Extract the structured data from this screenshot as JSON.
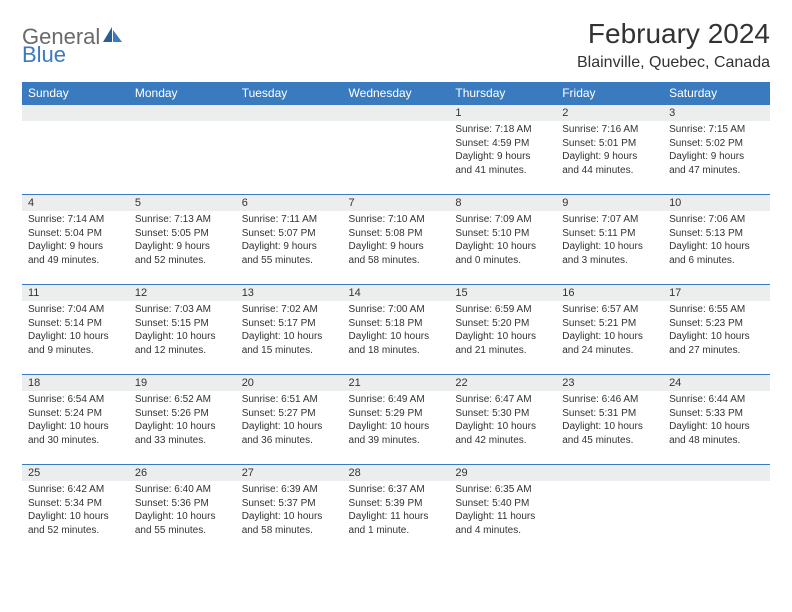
{
  "brand": {
    "part1": "General",
    "part2": "Blue"
  },
  "title": "February 2024",
  "location": "Blainville, Quebec, Canada",
  "colors": {
    "header_bg": "#3a7bbf",
    "header_fg": "#ffffff",
    "daynum_bg": "#eceded",
    "row_border": "#3a7bbf",
    "text": "#333333",
    "logo_gray": "#6a6a6a",
    "page_bg": "#ffffff"
  },
  "daynames": [
    "Sunday",
    "Monday",
    "Tuesday",
    "Wednesday",
    "Thursday",
    "Friday",
    "Saturday"
  ],
  "weeks": [
    [
      null,
      null,
      null,
      null,
      {
        "n": "1",
        "sr": "Sunrise: 7:18 AM",
        "ss": "Sunset: 4:59 PM",
        "dl1": "Daylight: 9 hours",
        "dl2": "and 41 minutes."
      },
      {
        "n": "2",
        "sr": "Sunrise: 7:16 AM",
        "ss": "Sunset: 5:01 PM",
        "dl1": "Daylight: 9 hours",
        "dl2": "and 44 minutes."
      },
      {
        "n": "3",
        "sr": "Sunrise: 7:15 AM",
        "ss": "Sunset: 5:02 PM",
        "dl1": "Daylight: 9 hours",
        "dl2": "and 47 minutes."
      }
    ],
    [
      {
        "n": "4",
        "sr": "Sunrise: 7:14 AM",
        "ss": "Sunset: 5:04 PM",
        "dl1": "Daylight: 9 hours",
        "dl2": "and 49 minutes."
      },
      {
        "n": "5",
        "sr": "Sunrise: 7:13 AM",
        "ss": "Sunset: 5:05 PM",
        "dl1": "Daylight: 9 hours",
        "dl2": "and 52 minutes."
      },
      {
        "n": "6",
        "sr": "Sunrise: 7:11 AM",
        "ss": "Sunset: 5:07 PM",
        "dl1": "Daylight: 9 hours",
        "dl2": "and 55 minutes."
      },
      {
        "n": "7",
        "sr": "Sunrise: 7:10 AM",
        "ss": "Sunset: 5:08 PM",
        "dl1": "Daylight: 9 hours",
        "dl2": "and 58 minutes."
      },
      {
        "n": "8",
        "sr": "Sunrise: 7:09 AM",
        "ss": "Sunset: 5:10 PM",
        "dl1": "Daylight: 10 hours",
        "dl2": "and 0 minutes."
      },
      {
        "n": "9",
        "sr": "Sunrise: 7:07 AM",
        "ss": "Sunset: 5:11 PM",
        "dl1": "Daylight: 10 hours",
        "dl2": "and 3 minutes."
      },
      {
        "n": "10",
        "sr": "Sunrise: 7:06 AM",
        "ss": "Sunset: 5:13 PM",
        "dl1": "Daylight: 10 hours",
        "dl2": "and 6 minutes."
      }
    ],
    [
      {
        "n": "11",
        "sr": "Sunrise: 7:04 AM",
        "ss": "Sunset: 5:14 PM",
        "dl1": "Daylight: 10 hours",
        "dl2": "and 9 minutes."
      },
      {
        "n": "12",
        "sr": "Sunrise: 7:03 AM",
        "ss": "Sunset: 5:15 PM",
        "dl1": "Daylight: 10 hours",
        "dl2": "and 12 minutes."
      },
      {
        "n": "13",
        "sr": "Sunrise: 7:02 AM",
        "ss": "Sunset: 5:17 PM",
        "dl1": "Daylight: 10 hours",
        "dl2": "and 15 minutes."
      },
      {
        "n": "14",
        "sr": "Sunrise: 7:00 AM",
        "ss": "Sunset: 5:18 PM",
        "dl1": "Daylight: 10 hours",
        "dl2": "and 18 minutes."
      },
      {
        "n": "15",
        "sr": "Sunrise: 6:59 AM",
        "ss": "Sunset: 5:20 PM",
        "dl1": "Daylight: 10 hours",
        "dl2": "and 21 minutes."
      },
      {
        "n": "16",
        "sr": "Sunrise: 6:57 AM",
        "ss": "Sunset: 5:21 PM",
        "dl1": "Daylight: 10 hours",
        "dl2": "and 24 minutes."
      },
      {
        "n": "17",
        "sr": "Sunrise: 6:55 AM",
        "ss": "Sunset: 5:23 PM",
        "dl1": "Daylight: 10 hours",
        "dl2": "and 27 minutes."
      }
    ],
    [
      {
        "n": "18",
        "sr": "Sunrise: 6:54 AM",
        "ss": "Sunset: 5:24 PM",
        "dl1": "Daylight: 10 hours",
        "dl2": "and 30 minutes."
      },
      {
        "n": "19",
        "sr": "Sunrise: 6:52 AM",
        "ss": "Sunset: 5:26 PM",
        "dl1": "Daylight: 10 hours",
        "dl2": "and 33 minutes."
      },
      {
        "n": "20",
        "sr": "Sunrise: 6:51 AM",
        "ss": "Sunset: 5:27 PM",
        "dl1": "Daylight: 10 hours",
        "dl2": "and 36 minutes."
      },
      {
        "n": "21",
        "sr": "Sunrise: 6:49 AM",
        "ss": "Sunset: 5:29 PM",
        "dl1": "Daylight: 10 hours",
        "dl2": "and 39 minutes."
      },
      {
        "n": "22",
        "sr": "Sunrise: 6:47 AM",
        "ss": "Sunset: 5:30 PM",
        "dl1": "Daylight: 10 hours",
        "dl2": "and 42 minutes."
      },
      {
        "n": "23",
        "sr": "Sunrise: 6:46 AM",
        "ss": "Sunset: 5:31 PM",
        "dl1": "Daylight: 10 hours",
        "dl2": "and 45 minutes."
      },
      {
        "n": "24",
        "sr": "Sunrise: 6:44 AM",
        "ss": "Sunset: 5:33 PM",
        "dl1": "Daylight: 10 hours",
        "dl2": "and 48 minutes."
      }
    ],
    [
      {
        "n": "25",
        "sr": "Sunrise: 6:42 AM",
        "ss": "Sunset: 5:34 PM",
        "dl1": "Daylight: 10 hours",
        "dl2": "and 52 minutes."
      },
      {
        "n": "26",
        "sr": "Sunrise: 6:40 AM",
        "ss": "Sunset: 5:36 PM",
        "dl1": "Daylight: 10 hours",
        "dl2": "and 55 minutes."
      },
      {
        "n": "27",
        "sr": "Sunrise: 6:39 AM",
        "ss": "Sunset: 5:37 PM",
        "dl1": "Daylight: 10 hours",
        "dl2": "and 58 minutes."
      },
      {
        "n": "28",
        "sr": "Sunrise: 6:37 AM",
        "ss": "Sunset: 5:39 PM",
        "dl1": "Daylight: 11 hours",
        "dl2": "and 1 minute."
      },
      {
        "n": "29",
        "sr": "Sunrise: 6:35 AM",
        "ss": "Sunset: 5:40 PM",
        "dl1": "Daylight: 11 hours",
        "dl2": "and 4 minutes."
      },
      null,
      null
    ]
  ]
}
